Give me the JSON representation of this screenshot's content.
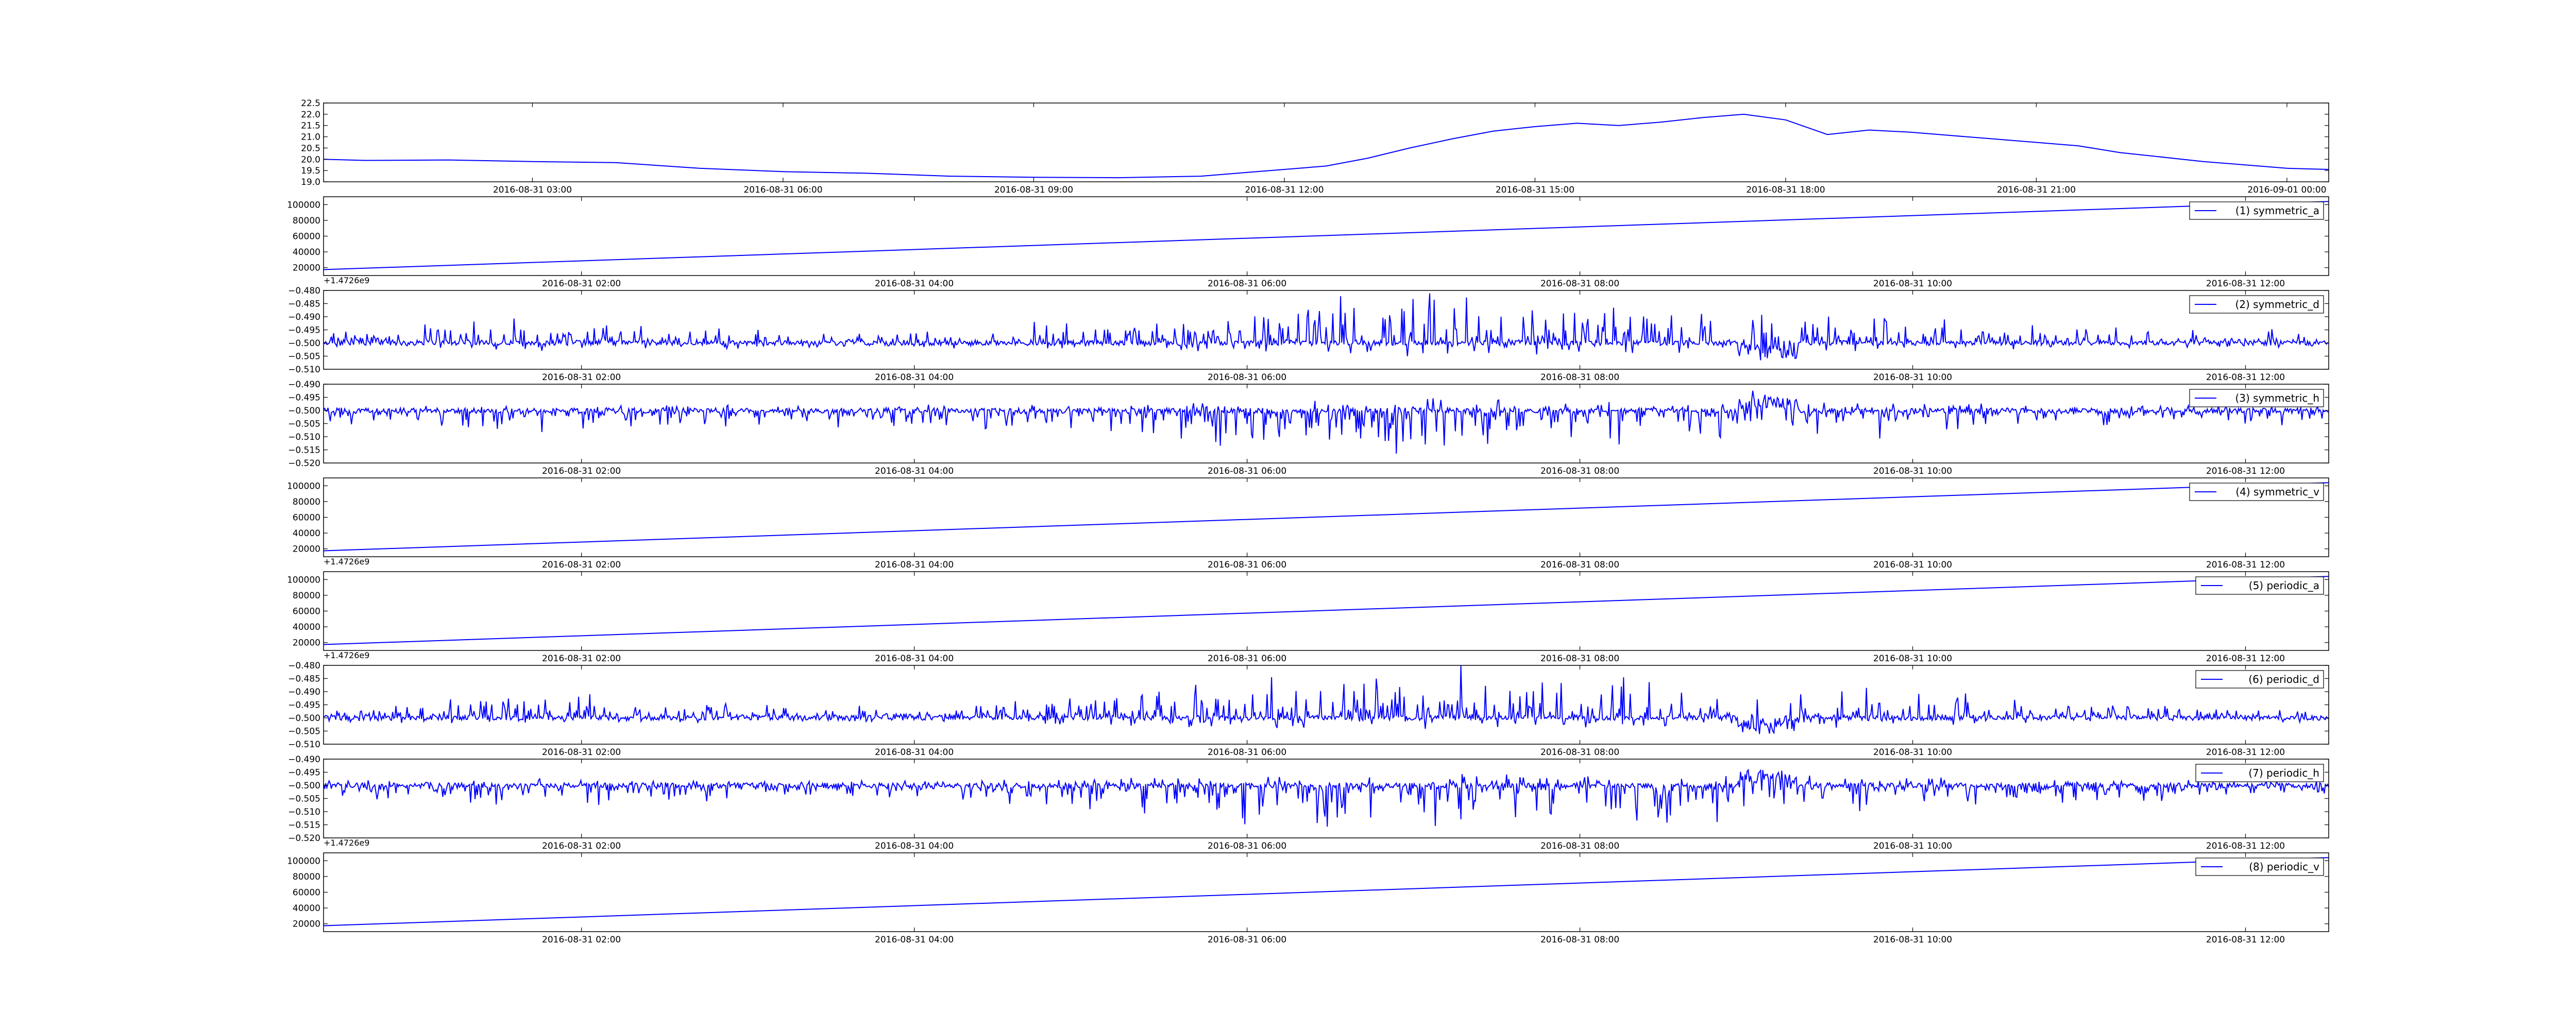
{
  "chart_data": [
    {
      "type": "line",
      "color": "#0000ff",
      "offset_text": "",
      "legend": "",
      "x_start": "2016-08-31 00:30",
      "x_end": "2016-09-01 00:30",
      "ylim": [
        19.0,
        22.5
      ],
      "yticks": [
        19.0,
        19.5,
        20.0,
        20.5,
        21.0,
        21.5,
        22.0,
        22.5
      ],
      "ytick_labels": [
        "19.0",
        "19.5",
        "20.0",
        "20.5",
        "21.0",
        "21.5",
        "22.0",
        "22.5"
      ],
      "xticks": [
        "2016-08-31 03:00",
        "2016-08-31 06:00",
        "2016-08-31 09:00",
        "2016-08-31 12:00",
        "2016-08-31 15:00",
        "2016-08-31 18:00",
        "2016-08-31 21:00",
        "2016-09-01 00:00"
      ],
      "series": [
        {
          "x": [
            "2016-08-31 00:30",
            "2016-08-31 01:00",
            "2016-08-31 02:00",
            "2016-08-31 03:00",
            "2016-08-31 04:00",
            "2016-08-31 05:00",
            "2016-08-31 06:00",
            "2016-08-31 07:00",
            "2016-08-31 08:00",
            "2016-08-31 09:00",
            "2016-08-31 10:00",
            "2016-08-31 11:00",
            "2016-08-31 11:30",
            "2016-08-31 12:00",
            "2016-08-31 12:30",
            "2016-08-31 13:00",
            "2016-08-31 13:30",
            "2016-08-31 14:00",
            "2016-08-31 14:30",
            "2016-08-31 15:00",
            "2016-08-31 15:30",
            "2016-08-31 16:00",
            "2016-08-31 16:30",
            "2016-08-31 17:00",
            "2016-08-31 17:30",
            "2016-08-31 18:00",
            "2016-08-31 18:30",
            "2016-08-31 19:00",
            "2016-08-31 19:30",
            "2016-08-31 20:00",
            "2016-08-31 20:30",
            "2016-08-31 21:00",
            "2016-08-31 21:30",
            "2016-08-31 22:00",
            "2016-08-31 23:00",
            "2016-09-01 00:00",
            "2016-09-01 00:30"
          ],
          "y": [
            20.0,
            19.95,
            19.97,
            19.9,
            19.85,
            19.6,
            19.45,
            19.38,
            19.25,
            19.2,
            19.18,
            19.25,
            19.4,
            19.55,
            19.7,
            20.05,
            20.5,
            20.9,
            21.25,
            21.45,
            21.6,
            21.5,
            21.65,
            21.85,
            22.0,
            21.75,
            21.1,
            21.3,
            21.2,
            21.05,
            20.9,
            20.75,
            20.6,
            20.3,
            19.9,
            19.6,
            19.55
          ]
        }
      ]
    },
    {
      "type": "line",
      "color": "#0000ff",
      "offset_text": "+1.4726e9",
      "legend": "(1) symmetric_a",
      "x_start": "2016-08-31 00:27",
      "x_end": "2016-08-31 12:30",
      "ylim": [
        10000,
        110000
      ],
      "yticks": [
        20000,
        40000,
        60000,
        80000,
        100000
      ],
      "ytick_labels": [
        "20000",
        "40000",
        "60000",
        "80000",
        "100000"
      ],
      "xticks": [
        "2016-08-31 02:00",
        "2016-08-31 04:00",
        "2016-08-31 06:00",
        "2016-08-31 08:00",
        "2016-08-31 10:00",
        "2016-08-31 12:00"
      ],
      "series": [
        {
          "name": "(1) symmetric_a",
          "x": [
            "2016-08-31 00:27",
            "2016-08-31 12:30"
          ],
          "y": [
            17500,
            104000
          ]
        }
      ]
    },
    {
      "type": "line",
      "color": "#0000ff",
      "offset_text": "",
      "legend": "(2) symmetric_d",
      "signal": "noise_up",
      "baseline": -0.5,
      "x_start": "2016-08-31 00:27",
      "x_end": "2016-08-31 12:30",
      "ylim": [
        -0.51,
        -0.48
      ],
      "yticks": [
        -0.51,
        -0.505,
        -0.5,
        -0.495,
        -0.49,
        -0.485,
        -0.48
      ],
      "ytick_labels": [
        "−0.510",
        "−0.505",
        "−0.500",
        "−0.495",
        "−0.490",
        "−0.485",
        "−0.480"
      ],
      "xticks": [
        "2016-08-31 02:00",
        "2016-08-31 04:00",
        "2016-08-31 06:00",
        "2016-08-31 08:00",
        "2016-08-31 10:00",
        "2016-08-31 12:00"
      ]
    },
    {
      "type": "line",
      "color": "#0000ff",
      "offset_text": "",
      "legend": "(3) symmetric_h",
      "signal": "noise_down",
      "baseline": -0.5,
      "x_start": "2016-08-31 00:27",
      "x_end": "2016-08-31 12:30",
      "ylim": [
        -0.52,
        -0.49
      ],
      "yticks": [
        -0.52,
        -0.515,
        -0.51,
        -0.505,
        -0.5,
        -0.495,
        -0.49
      ],
      "ytick_labels": [
        "−0.520",
        "−0.515",
        "−0.510",
        "−0.505",
        "−0.500",
        "−0.495",
        "−0.490"
      ],
      "xticks": [
        "2016-08-31 02:00",
        "2016-08-31 04:00",
        "2016-08-31 06:00",
        "2016-08-31 08:00",
        "2016-08-31 10:00",
        "2016-08-31 12:00"
      ]
    },
    {
      "type": "line",
      "color": "#0000ff",
      "offset_text": "+1.4726e9",
      "legend": "(4) symmetric_v",
      "x_start": "2016-08-31 00:27",
      "x_end": "2016-08-31 12:30",
      "ylim": [
        10000,
        110000
      ],
      "yticks": [
        20000,
        40000,
        60000,
        80000,
        100000
      ],
      "ytick_labels": [
        "20000",
        "40000",
        "60000",
        "80000",
        "100000"
      ],
      "xticks": [
        "2016-08-31 02:00",
        "2016-08-31 04:00",
        "2016-08-31 06:00",
        "2016-08-31 08:00",
        "2016-08-31 10:00",
        "2016-08-31 12:00"
      ],
      "series": [
        {
          "name": "(4) symmetric_v",
          "x": [
            "2016-08-31 00:27",
            "2016-08-31 12:30"
          ],
          "y": [
            17500,
            104000
          ]
        }
      ]
    },
    {
      "type": "line",
      "color": "#0000ff",
      "offset_text": "+1.4726e9",
      "legend": "(5) periodic_a",
      "x_start": "2016-08-31 00:27",
      "x_end": "2016-08-31 12:30",
      "ylim": [
        10000,
        110000
      ],
      "yticks": [
        20000,
        40000,
        60000,
        80000,
        100000
      ],
      "ytick_labels": [
        "20000",
        "40000",
        "60000",
        "80000",
        "100000"
      ],
      "xticks": [
        "2016-08-31 02:00",
        "2016-08-31 04:00",
        "2016-08-31 06:00",
        "2016-08-31 08:00",
        "2016-08-31 10:00",
        "2016-08-31 12:00"
      ],
      "series": [
        {
          "name": "(5) periodic_a",
          "x": [
            "2016-08-31 00:27",
            "2016-08-31 12:30"
          ],
          "y": [
            17500,
            104000
          ]
        }
      ]
    },
    {
      "type": "line",
      "color": "#0000ff",
      "offset_text": "",
      "legend": "(6) periodic_d",
      "signal": "noise_up",
      "baseline": -0.5,
      "x_start": "2016-08-31 00:27",
      "x_end": "2016-08-31 12:30",
      "ylim": [
        -0.51,
        -0.48
      ],
      "yticks": [
        -0.51,
        -0.505,
        -0.5,
        -0.495,
        -0.49,
        -0.485,
        -0.48
      ],
      "ytick_labels": [
        "−0.510",
        "−0.505",
        "−0.500",
        "−0.495",
        "−0.490",
        "−0.485",
        "−0.480"
      ],
      "xticks": [
        "2016-08-31 02:00",
        "2016-08-31 04:00",
        "2016-08-31 06:00",
        "2016-08-31 08:00",
        "2016-08-31 10:00",
        "2016-08-31 12:00"
      ]
    },
    {
      "type": "line",
      "color": "#0000ff",
      "offset_text": "+1.4726e9",
      "legend": "(7) periodic_h",
      "signal": "noise_down",
      "baseline": -0.5,
      "x_start": "2016-08-31 00:27",
      "x_end": "2016-08-31 12:30",
      "ylim": [
        -0.52,
        -0.49
      ],
      "yticks": [
        -0.52,
        -0.515,
        -0.51,
        -0.505,
        -0.5,
        -0.495,
        -0.49
      ],
      "ytick_labels": [
        "−0.520",
        "−0.515",
        "−0.510",
        "−0.505",
        "−0.500",
        "−0.495",
        "−0.490"
      ],
      "xticks": [
        "2016-08-31 02:00",
        "2016-08-31 04:00",
        "2016-08-31 06:00",
        "2016-08-31 08:00",
        "2016-08-31 10:00",
        "2016-08-31 12:00"
      ]
    },
    {
      "type": "line",
      "color": "#0000ff",
      "offset_text": "",
      "legend": "(8) periodic_v",
      "x_start": "2016-08-31 00:27",
      "x_end": "2016-08-31 12:30",
      "ylim": [
        10000,
        110000
      ],
      "yticks": [
        20000,
        40000,
        60000,
        80000,
        100000
      ],
      "ytick_labels": [
        "20000",
        "40000",
        "60000",
        "80000",
        "100000"
      ],
      "xticks": [
        "2016-08-31 02:00",
        "2016-08-31 04:00",
        "2016-08-31 06:00",
        "2016-08-31 08:00",
        "2016-08-31 10:00",
        "2016-08-31 12:00"
      ],
      "series": [
        {
          "name": "(8) periodic_v",
          "x": [
            "2016-08-31 00:27",
            "2016-08-31 12:30"
          ],
          "y": [
            17500,
            104000
          ]
        }
      ]
    }
  ]
}
